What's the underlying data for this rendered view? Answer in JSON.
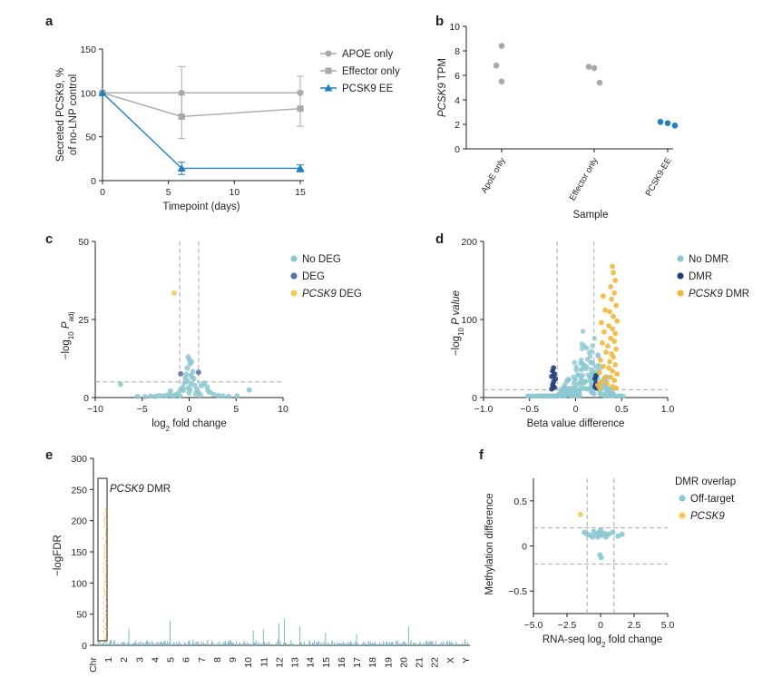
{
  "colors": {
    "apoe": "#a7a9ac",
    "effector": "#a7a9ac",
    "pcsk9_ee": "#1f7fbf",
    "no_deg": "#8cc8cf",
    "deg": "#5a6ea8",
    "pcsk9_deg": "#f2c95a",
    "no_dmr": "#8cc8cf",
    "dmr": "#1f3c7a",
    "pcsk9_dmr": "#f1b83c",
    "manhattan": "#7fb8c0",
    "off_target": "#8cc8cf",
    "pcsk9": "#f2c95a"
  },
  "chart_data": [
    {
      "panel": "a",
      "type": "line",
      "xlabel": "Timepoint (days)",
      "ylabel_line1": "Secreted PCSK9, %",
      "ylabel_line2": "of no-LNP control",
      "xlim": [
        0,
        15
      ],
      "ylim": [
        0,
        150
      ],
      "xticks": [
        "0",
        "5",
        "10",
        "15"
      ],
      "yticks": [
        "0",
        "50",
        "100",
        "150"
      ],
      "series": [
        {
          "name": "APOE only",
          "marker": "circle",
          "x": [
            0,
            6,
            15
          ],
          "y": [
            100,
            100,
            100
          ],
          "err": [
            0,
            30,
            19
          ]
        },
        {
          "name": "Effector only",
          "marker": "square",
          "x": [
            0,
            6,
            15
          ],
          "y": [
            100,
            73,
            82
          ],
          "err": [
            0,
            25,
            20
          ]
        },
        {
          "name": "PCSK9 EE",
          "marker": "triangle",
          "x": [
            0,
            6,
            15
          ],
          "y": [
            100,
            14,
            14
          ],
          "err": [
            0,
            7,
            4
          ]
        }
      ]
    },
    {
      "panel": "b",
      "type": "scatter",
      "xlabel": "Sample",
      "ylabel": "PCSK9 TPM",
      "ylim": [
        0,
        10
      ],
      "yticks": [
        "0",
        "2",
        "4",
        "6",
        "8",
        "10"
      ],
      "categories": [
        "ApoE only",
        "Effector only",
        "PCSK9-EE"
      ],
      "points": [
        {
          "category": "ApoE only",
          "values": [
            8.4,
            6.8,
            5.5
          ]
        },
        {
          "category": "Effector only",
          "values": [
            6.7,
            6.6,
            5.4
          ]
        },
        {
          "category": "PCSK9-EE",
          "values": [
            2.2,
            2.1,
            1.9
          ]
        }
      ]
    },
    {
      "panel": "c",
      "type": "scatter",
      "xlabel_pre": "log",
      "xlabel_sub": "2",
      "xlabel_post": " fold change",
      "ylabel_pre": "−log",
      "ylabel_sub": "10",
      "ylabel_mid": " P",
      "ylabel_sub2": "adj",
      "xlim": [
        -10,
        10
      ],
      "ylim": [
        0,
        50
      ],
      "xticks": [
        "−10",
        "−5",
        "0",
        "5",
        "10"
      ],
      "yticks": [
        "0",
        "25",
        "50"
      ],
      "thresholds": {
        "x": [
          -1,
          1
        ],
        "y": 5
      },
      "series": [
        {
          "name": "No DEG",
          "points": [
            [
              -7.3,
              4.3
            ],
            [
              -5.5,
              0.4
            ],
            [
              -4.7,
              0.3
            ],
            [
              -4.1,
              0.5
            ],
            [
              -3.6,
              0.4
            ],
            [
              -3.2,
              0.6
            ],
            [
              -2.8,
              0.5
            ],
            [
              -2.4,
              0.7
            ],
            [
              -2.1,
              0.9
            ],
            [
              -1.8,
              0.5
            ],
            [
              -1.5,
              0.8
            ],
            [
              -1.2,
              1.3
            ],
            [
              -0.9,
              2.4
            ],
            [
              -0.7,
              3.2
            ],
            [
              -0.5,
              4.6
            ],
            [
              -0.4,
              6.2
            ],
            [
              -0.3,
              7.4
            ],
            [
              -0.2,
              5.3
            ],
            [
              -0.1,
              3.1
            ],
            [
              0,
              1.5
            ],
            [
              0.1,
              2.6
            ],
            [
              0.2,
              4.4
            ],
            [
              0.3,
              6.5
            ],
            [
              0.4,
              8.3
            ],
            [
              0.5,
              6.0
            ],
            [
              0.6,
              3.9
            ],
            [
              0.8,
              2.5
            ],
            [
              1.0,
              1.6
            ],
            [
              1.3,
              3.8
            ],
            [
              1.6,
              4.6
            ],
            [
              1.9,
              3.4
            ],
            [
              2.2,
              1.7
            ],
            [
              2.6,
              1.0
            ],
            [
              3.1,
              0.7
            ],
            [
              3.6,
              0.5
            ],
            [
              4.2,
              0.4
            ],
            [
              5.1,
              0.5
            ],
            [
              6.4,
              2.4
            ],
            [
              0.0,
              12.2
            ],
            [
              0.1,
              10.8
            ],
            [
              -0.2,
              9.4
            ],
            [
              0.25,
              11.5
            ],
            [
              -0.1,
              13.0
            ],
            [
              0.2,
              7.1
            ],
            [
              -0.6,
              2.3
            ],
            [
              0.7,
              1.2
            ],
            [
              -1.0,
              0.6
            ],
            [
              1.2,
              0.8
            ],
            [
              -2.0,
              2.1
            ],
            [
              2.0,
              2.3
            ]
          ]
        },
        {
          "name": "DEG",
          "points": [
            [
              1.0,
              8.1
            ],
            [
              -0.9,
              7.6
            ]
          ]
        },
        {
          "name": "PCSK9 DEG",
          "points": [
            [
              -1.6,
              33.5
            ]
          ]
        }
      ]
    },
    {
      "panel": "d",
      "type": "scatter",
      "xlabel": "Beta value difference",
      "ylabel_pre": "−log",
      "ylabel_sub": "10",
      "ylabel_mid": " P value",
      "xlim": [
        -1.0,
        1.0
      ],
      "ylim": [
        0,
        200
      ],
      "xticks": [
        "−1.0",
        "−0.5",
        "0",
        "0.5",
        "1.0"
      ],
      "yticks": [
        "0",
        "100",
        "200"
      ],
      "thresholds": {
        "x": [
          -0.2,
          0.2
        ],
        "y": 10
      },
      "series": [
        {
          "name": "No DMR",
          "points": "generated-cloud"
        },
        {
          "name": "DMR",
          "points": [
            [
              -0.24,
              38
            ],
            [
              -0.25,
              34
            ],
            [
              -0.23,
              30
            ],
            [
              -0.26,
              27
            ],
            [
              -0.22,
              24
            ],
            [
              -0.24,
              20
            ],
            [
              -0.25,
              16
            ],
            [
              -0.23,
              13
            ],
            [
              -0.26,
              11
            ],
            [
              0.21,
              24
            ],
            [
              0.22,
              18
            ],
            [
              0.21,
              14
            ],
            [
              0.23,
              12
            ],
            [
              0.22,
              28
            ]
          ]
        },
        {
          "name": "PCSK9 DMR",
          "points": [
            [
              0.4,
              168
            ],
            [
              0.41,
              160
            ],
            [
              0.43,
              150
            ],
            [
              0.38,
              142
            ],
            [
              0.42,
              134
            ],
            [
              0.39,
              126
            ],
            [
              0.44,
              118
            ],
            [
              0.37,
              110
            ],
            [
              0.41,
              104
            ],
            [
              0.45,
              98
            ],
            [
              0.36,
              92
            ],
            [
              0.4,
              88
            ],
            [
              0.43,
              82
            ],
            [
              0.38,
              76
            ],
            [
              0.42,
              72
            ],
            [
              0.35,
              66
            ],
            [
              0.44,
              62
            ],
            [
              0.39,
              56
            ],
            [
              0.41,
              52
            ],
            [
              0.37,
              46
            ],
            [
              0.43,
              42
            ],
            [
              0.36,
              38
            ],
            [
              0.4,
              34
            ],
            [
              0.45,
              30
            ],
            [
              0.38,
              26
            ],
            [
              0.42,
              22
            ],
            [
              0.34,
              18
            ],
            [
              0.4,
              14
            ],
            [
              0.44,
              12
            ],
            [
              0.3,
              130
            ],
            [
              0.32,
              112
            ],
            [
              0.28,
              96
            ],
            [
              0.31,
              84
            ],
            [
              0.29,
              70
            ],
            [
              0.33,
              58
            ],
            [
              0.27,
              48
            ],
            [
              0.3,
              40
            ],
            [
              0.26,
              32
            ],
            [
              0.32,
              26
            ],
            [
              0.28,
              20
            ],
            [
              0.24,
              16
            ],
            [
              0.26,
              12
            ]
          ]
        }
      ]
    },
    {
      "panel": "e",
      "type": "manhattan",
      "ylabel": "−logFDR",
      "xlabel_chr": "Chr",
      "ylim": [
        0,
        300
      ],
      "yticks": [
        "0",
        "50",
        "100",
        "150",
        "200",
        "250",
        "300"
      ],
      "chromosomes": [
        "1",
        "2",
        "3",
        "4",
        "5",
        "6",
        "7",
        "8",
        "9",
        "10",
        "11",
        "12",
        "13",
        "14",
        "15",
        "16",
        "17",
        "18",
        "19",
        "20",
        "21",
        "22",
        "X",
        "Y"
      ],
      "peaks": [
        {
          "chr": "1",
          "value": 222,
          "pcsk9": true
        },
        {
          "chr": "2",
          "value": 27
        },
        {
          "chr": "5",
          "value": 40
        },
        {
          "chr": "10",
          "value": 24
        },
        {
          "chr": "11",
          "value": 26
        },
        {
          "chr": "12",
          "value": 42
        },
        {
          "chr": "12",
          "value": 35
        },
        {
          "chr": "13",
          "value": 30
        },
        {
          "chr": "15",
          "value": 20
        },
        {
          "chr": "20",
          "value": 30
        },
        {
          "chr": "17",
          "value": 18
        }
      ],
      "annotation": {
        "italic": "PCSK9",
        "rest": " DMR"
      }
    },
    {
      "panel": "f",
      "type": "scatter",
      "xlabel_pre": "RNA-seq log",
      "xlabel_sub": "2",
      "xlabel_post": " fold change",
      "ylabel": "Methylation difference",
      "xlim": [
        -5.0,
        5.0
      ],
      "ylim": [
        -0.75,
        0.75
      ],
      "xticks": [
        "−5.0",
        "−2.5",
        "0",
        "2.5",
        "5.0"
      ],
      "yticks": [
        "−0.5",
        "0",
        "0.5"
      ],
      "thresholds": {
        "x": [
          -1,
          1
        ],
        "y": [
          -0.2,
          0.2
        ]
      },
      "legend_title": "DMR overlap",
      "series": [
        {
          "name": "Off-target",
          "points": [
            [
              -1.2,
              0.15
            ],
            [
              -0.8,
              0.12
            ],
            [
              -0.5,
              0.16
            ],
            [
              -0.3,
              0.13
            ],
            [
              -0.1,
              0.15
            ],
            [
              0.1,
              0.12
            ],
            [
              0.3,
              0.14
            ],
            [
              0.6,
              0.13
            ],
            [
              0.9,
              0.15
            ],
            [
              1.6,
              0.13
            ],
            [
              -0.6,
              0.1
            ],
            [
              0.4,
              0.1
            ],
            [
              -0.2,
              0.1
            ],
            [
              0.0,
              0.18
            ],
            [
              -0.05,
              -0.1
            ],
            [
              0.05,
              -0.13
            ],
            [
              -1.0,
              0.13
            ],
            [
              0.0,
              0.14
            ],
            [
              1.3,
              0.11
            ]
          ]
        },
        {
          "name": "PCSK9",
          "points": [
            [
              -1.5,
              0.35
            ]
          ]
        }
      ]
    }
  ]
}
